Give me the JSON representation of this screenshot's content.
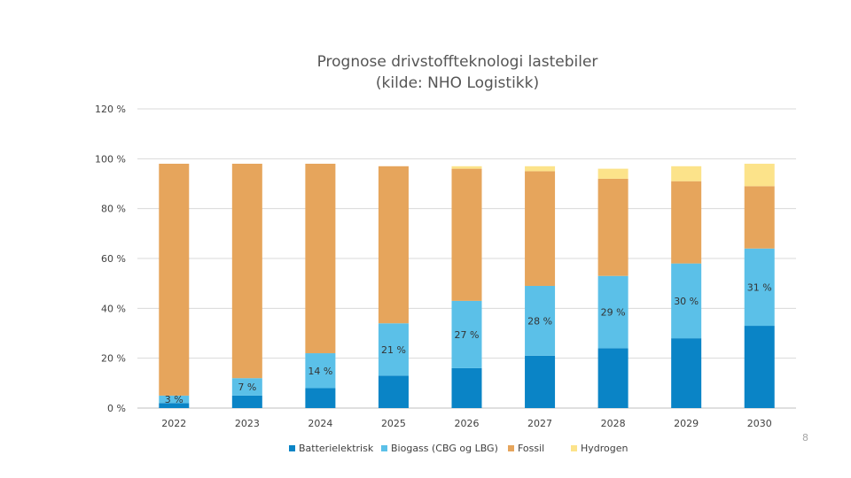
{
  "page_number": "8",
  "chart_data": {
    "type": "bar",
    "stacked": true,
    "title": "Prognose drivstoffteknologi lastebiler",
    "subtitle": "(kilde: NHO Logistikk)",
    "categories": [
      "2022",
      "2023",
      "2024",
      "2025",
      "2026",
      "2027",
      "2028",
      "2029",
      "2030"
    ],
    "series": [
      {
        "name": "Batterielektrisk",
        "color": "#0a84c6",
        "values": [
          2,
          5,
          8,
          13,
          16,
          21,
          24,
          28,
          33
        ]
      },
      {
        "name": "Biogass (CBG og LBG)",
        "color": "#5bc0e8",
        "values": [
          3,
          7,
          14,
          21,
          27,
          28,
          29,
          30,
          31
        ],
        "data_labels": [
          "3 %",
          "7 %",
          "14 %",
          "21 %",
          "27 %",
          "28 %",
          "29 %",
          "30 %",
          "31 %"
        ]
      },
      {
        "name": "Fossil",
        "color": "#e6a55c",
        "values": [
          93,
          86,
          76,
          63,
          53,
          46,
          39,
          33,
          25
        ]
      },
      {
        "name": "Hydrogen",
        "color": "#fce38a",
        "values": [
          0,
          0,
          0,
          0,
          1,
          2,
          4,
          6,
          9
        ]
      }
    ],
    "y_ticks": [
      "0 %",
      "20 %",
      "40 %",
      "60 %",
      "80 %",
      "100 %",
      "120 %"
    ],
    "ylim": [
      0,
      120
    ],
    "grid": true,
    "legend_position": "bottom"
  }
}
